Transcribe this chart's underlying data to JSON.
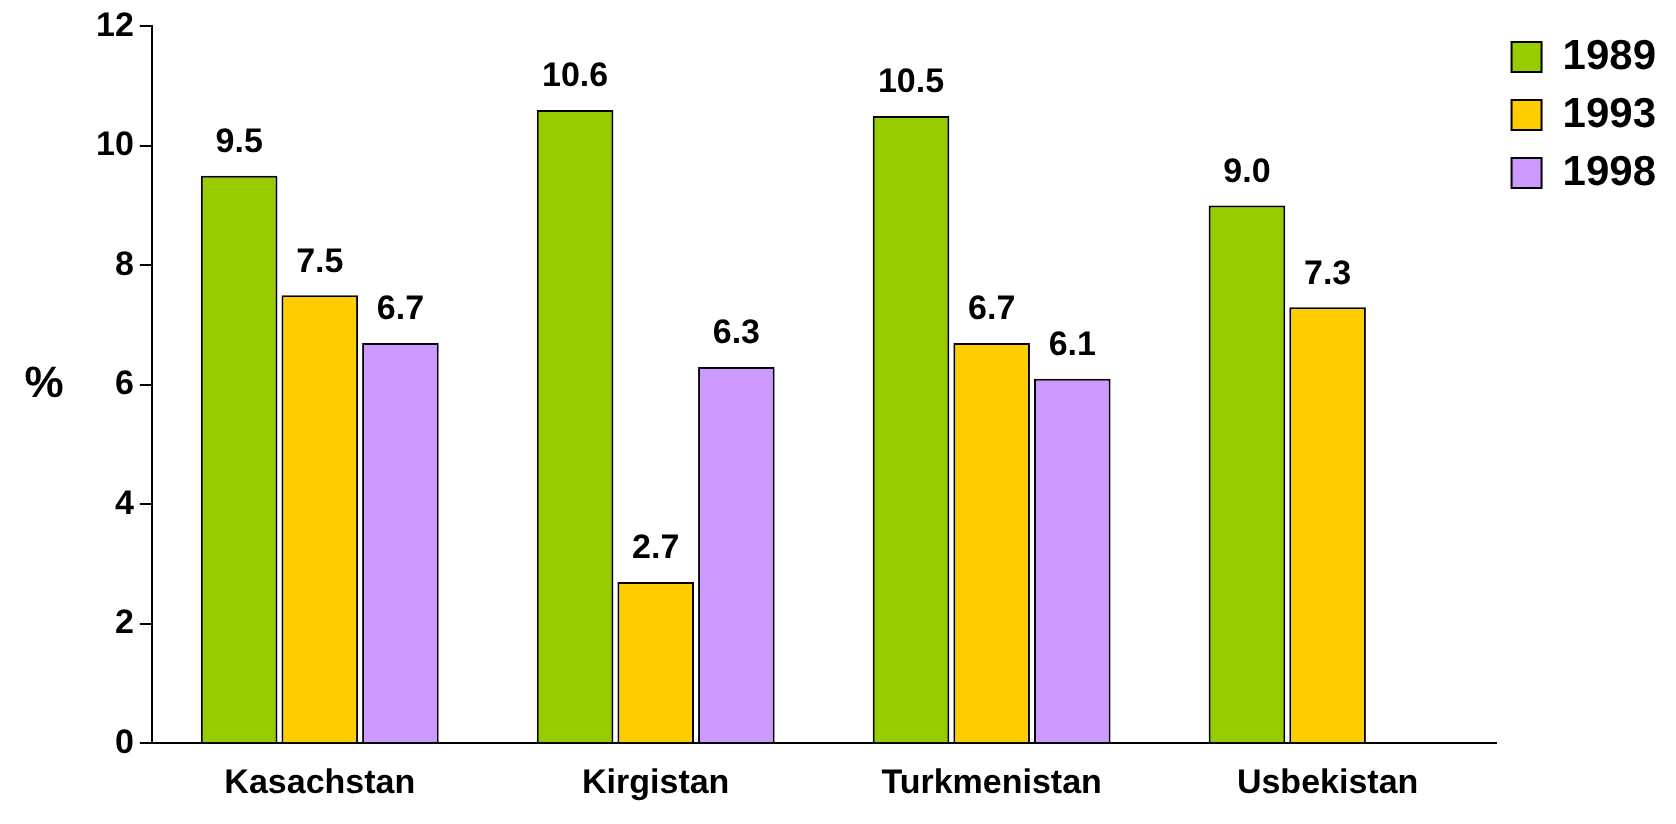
{
  "chart_data": {
    "type": "bar",
    "ylabel": "%",
    "categories": [
      "Kasachstan",
      "Kirgistan",
      "Turkmenistan",
      "Usbekistan"
    ],
    "series": [
      {
        "name": "1989",
        "color": "#99cc00",
        "values": [
          9.5,
          10.6,
          10.5,
          9.0
        ],
        "value_labels": [
          "9.5",
          "10.6",
          "10.5",
          "9.0"
        ]
      },
      {
        "name": "1993",
        "color": "#ffcc00",
        "values": [
          7.5,
          2.7,
          6.7,
          7.3
        ],
        "value_labels": [
          "7.5",
          "2.7",
          "6.7",
          "7.3"
        ]
      },
      {
        "name": "1998",
        "color": "#cc99ff",
        "values": [
          6.7,
          6.3,
          6.1,
          null
        ],
        "value_labels": [
          "6.7",
          "6.3",
          "6.1",
          null
        ]
      }
    ],
    "ylim": [
      0,
      12
    ],
    "yticks": [
      0,
      2,
      4,
      6,
      8,
      10,
      12
    ],
    "grid": false,
    "legend": "top right"
  }
}
